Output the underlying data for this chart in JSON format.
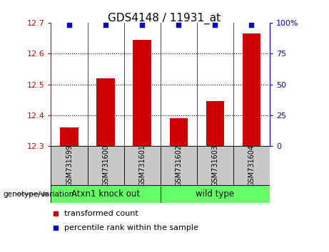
{
  "title": "GDS4148 / 11931_at",
  "categories": [
    "GSM731599",
    "GSM731600",
    "GSM731601",
    "GSM731602",
    "GSM731603",
    "GSM731604"
  ],
  "bar_values": [
    12.36,
    12.52,
    12.645,
    12.39,
    12.445,
    12.665
  ],
  "bar_base": 12.3,
  "bar_color": "#cc0000",
  "percentile_color": "#0000cc",
  "ylim_left": [
    12.3,
    12.7
  ],
  "ylim_right": [
    0,
    100
  ],
  "yticks_left": [
    12.3,
    12.4,
    12.5,
    12.6,
    12.7
  ],
  "yticks_right": [
    0,
    25,
    50,
    75,
    100
  ],
  "ytick_labels_right": [
    "0",
    "25",
    "50",
    "75",
    "100%"
  ],
  "group1_label": "Atxn1 knock out",
  "group2_label": "wild type",
  "group_color": "#66ff66",
  "sample_bg_color": "#c8c8c8",
  "genotype_label": "genotype/variation",
  "legend_bar_label": "transformed count",
  "legend_dot_label": "percentile rank within the sample",
  "left_tick_color": "#cc0000",
  "right_tick_color": "#0000cc",
  "grid_linestyle": "dotted",
  "grid_color": "#000000"
}
